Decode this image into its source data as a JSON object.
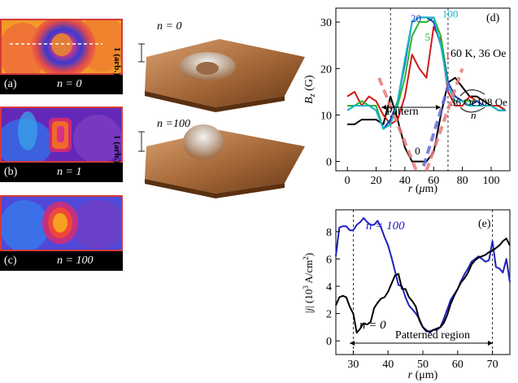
{
  "panels": {
    "a": {
      "label": "(a)",
      "n_label": "n = 0"
    },
    "b": {
      "label": "(b)",
      "n_label": "n = 1"
    },
    "c": {
      "label": "(c)",
      "n_label": "n = 100"
    }
  },
  "surfaces": {
    "top": {
      "title": "n = 0",
      "scale": "1 (arb.)"
    },
    "bottom": {
      "title": "n =100",
      "scale": "1 (arb.)"
    }
  },
  "chart_d": {
    "panel_label": "(d)",
    "condition": "60 K, 36 Oe",
    "cycle_low": "36 Oe",
    "cycle_high": "108 Oe",
    "cycle_n": "n",
    "pattern_label": "Pattern",
    "curve_labels": [
      "0",
      "1",
      "5",
      "20",
      "100"
    ]
  },
  "chart_e": {
    "panel_label": "(e)",
    "n100_label": "n = 100",
    "n0_label": "n = 0",
    "region_label": "Patterned region"
  },
  "chart_data": [
    {
      "type": "line",
      "id": "d",
      "xlabel": "r (μm)",
      "ylabel": "B_z (G)",
      "xlim": [
        -8,
        113
      ],
      "ylim": [
        -2,
        33
      ],
      "xticks": [
        0,
        20,
        40,
        60,
        80,
        100
      ],
      "yticks": [
        0,
        10,
        20,
        30
      ],
      "vlines": [
        30,
        70
      ],
      "series": [
        {
          "name": "n = 0",
          "color": "#000000",
          "x": [
            0,
            5,
            10,
            15,
            20,
            25,
            30,
            35,
            40,
            45,
            50,
            55,
            60,
            65,
            70,
            75,
            80,
            85,
            90,
            95,
            100,
            105,
            110
          ],
          "y": [
            8,
            8,
            9,
            9,
            9,
            8,
            14,
            9,
            3,
            0,
            0,
            0,
            2,
            10,
            17,
            18,
            16,
            14,
            14,
            13,
            12,
            12,
            11
          ]
        },
        {
          "name": "n = 1",
          "color": "#d01818",
          "x": [
            0,
            5,
            10,
            15,
            20,
            25,
            30,
            35,
            40,
            45,
            50,
            55,
            60,
            65,
            70,
            75,
            80,
            85,
            90,
            95,
            100,
            105,
            110
          ],
          "y": [
            14,
            15,
            12,
            14,
            13,
            10,
            8,
            9,
            14,
            23,
            20,
            18,
            29,
            26,
            15,
            12,
            12,
            14,
            13,
            12,
            12,
            12,
            11
          ]
        },
        {
          "name": "n = 5",
          "color": "#2ab42a",
          "x": [
            0,
            5,
            10,
            15,
            20,
            25,
            30,
            35,
            40,
            45,
            50,
            55,
            60,
            65,
            70,
            75,
            80,
            85,
            90,
            95,
            100,
            105,
            110
          ],
          "y": [
            12,
            12,
            13,
            12,
            12,
            7,
            9,
            12,
            18,
            27,
            30,
            30,
            31,
            27,
            17,
            14,
            13,
            13,
            13,
            12,
            12,
            11,
            11
          ]
        },
        {
          "name": "n = 20",
          "color": "#1a3ac8",
          "x": [
            0,
            5,
            10,
            15,
            20,
            25,
            30,
            35,
            40,
            45,
            50,
            55,
            60,
            65,
            70,
            75,
            80,
            85,
            90,
            95,
            100,
            105,
            110
          ],
          "y": [
            11,
            12,
            12,
            12,
            11,
            7,
            9,
            13,
            21,
            30,
            31,
            31,
            30,
            25,
            17,
            14,
            13,
            12,
            13,
            12,
            12,
            11,
            11
          ]
        },
        {
          "name": "n = 100",
          "color": "#1ab9c8",
          "x": [
            0,
            5,
            10,
            15,
            20,
            25,
            30,
            35,
            40,
            45,
            50,
            55,
            60,
            65,
            70,
            75,
            80,
            85,
            90,
            95,
            100,
            105,
            110
          ],
          "y": [
            11,
            12,
            12,
            12,
            11,
            7,
            8,
            13,
            22,
            30,
            31,
            31,
            31,
            25,
            16,
            13,
            13,
            12,
            12,
            12,
            12,
            11,
            11
          ]
        },
        {
          "name": "guide-left",
          "color": "#e87a7a",
          "x": [
            22,
            48
          ],
          "y": [
            18,
            -2
          ]
        },
        {
          "name": "guide-right",
          "color": "#e87a7a",
          "x": [
            55,
            80
          ],
          "y": [
            -2,
            20
          ]
        },
        {
          "name": "guide-blue",
          "color": "#6a6ad8",
          "x": [
            53,
            71
          ],
          "y": [
            -1,
            17
          ]
        }
      ]
    },
    {
      "type": "line",
      "id": "e",
      "xlabel": "r (μm)",
      "ylabel": "|j| (10³ A/cm²)",
      "xlim": [
        25,
        75
      ],
      "ylim": [
        -1,
        9.6
      ],
      "xticks": [
        30,
        40,
        50,
        60,
        70
      ],
      "yticks": [
        0,
        2,
        4,
        6,
        8
      ],
      "vlines": [
        30,
        70
      ],
      "series": [
        {
          "name": "n = 100",
          "color": "#2020c0",
          "x": [
            25,
            26,
            27,
            28,
            29,
            30,
            31,
            32,
            33,
            34,
            35,
            36,
            37,
            38,
            39,
            40,
            41,
            42,
            43,
            44,
            45,
            46,
            47,
            48,
            49,
            50,
            51,
            52,
            53,
            54,
            55,
            56,
            57,
            58,
            59,
            60,
            61,
            62,
            63,
            64,
            65,
            66,
            67,
            68,
            69,
            70,
            71,
            72,
            73,
            74,
            75
          ],
          "y": [
            6.2,
            8.3,
            8.4,
            8.4,
            8.1,
            8.1,
            8.5,
            8.7,
            9.0,
            8.7,
            8.5,
            8.5,
            8.8,
            8.3,
            7.6,
            7.0,
            6.1,
            5.1,
            4.1,
            4.0,
            3.2,
            2.6,
            2.3,
            2.0,
            1.6,
            1.0,
            0.8,
            0.6,
            0.8,
            0.8,
            1.0,
            1.6,
            2.3,
            3.0,
            3.4,
            3.8,
            4.4,
            4.9,
            5.3,
            5.8,
            6.0,
            6.2,
            6.0,
            5.8,
            5.9,
            7.3,
            5.4,
            5.3,
            5.0,
            6.0,
            4.3
          ]
        },
        {
          "name": "n = 0",
          "color": "#000000",
          "x": [
            25,
            26,
            27,
            28,
            29,
            30,
            31,
            32,
            33,
            34,
            35,
            36,
            37,
            38,
            39,
            40,
            41,
            42,
            43,
            44,
            45,
            46,
            47,
            48,
            49,
            50,
            51,
            52,
            53,
            54,
            55,
            56,
            57,
            58,
            59,
            60,
            61,
            62,
            63,
            64,
            65,
            66,
            67,
            68,
            69,
            70,
            71,
            72,
            73,
            74,
            75
          ],
          "y": [
            2.6,
            3.2,
            3.3,
            3.2,
            2.5,
            2.0,
            0.6,
            0.9,
            1.3,
            1.2,
            1.4,
            2.4,
            2.8,
            3.1,
            3.2,
            3.6,
            4.2,
            4.8,
            4.9,
            3.8,
            3.8,
            3.2,
            2.9,
            2.5,
            1.5,
            1.0,
            0.7,
            0.7,
            0.8,
            0.9,
            1.0,
            1.3,
            1.9,
            2.7,
            3.3,
            3.8,
            4.3,
            4.6,
            5.0,
            5.6,
            5.9,
            6.1,
            6.2,
            6.3,
            6.5,
            6.6,
            6.8,
            7.0,
            7.3,
            7.5,
            7.0
          ]
        }
      ]
    }
  ]
}
